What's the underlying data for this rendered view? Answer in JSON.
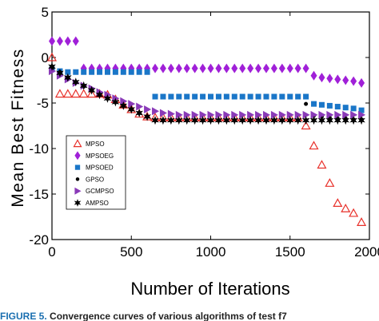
{
  "chart_data": {
    "type": "scatter",
    "title": "",
    "xlabel": "Number of Iterations",
    "ylabel": "Mean Best Fitness",
    "xlim": [
      0,
      2000
    ],
    "ylim": [
      -20,
      5
    ],
    "xticks": [
      0,
      500,
      1000,
      1500,
      2000
    ],
    "yticks": [
      5,
      0,
      -5,
      -10,
      -15,
      -20
    ],
    "grid": false,
    "legend_position": "lower-left",
    "series": [
      {
        "name": "MPSO",
        "marker": "triangle-up-open",
        "color": "#e8302a",
        "x": [
          0,
          50,
          100,
          150,
          200,
          250,
          300,
          350,
          400,
          450,
          500,
          550,
          600,
          650,
          700,
          750,
          800,
          850,
          900,
          950,
          1000,
          1050,
          1100,
          1150,
          1200,
          1250,
          1300,
          1350,
          1400,
          1450,
          1500,
          1550,
          1600,
          1650,
          1700,
          1750,
          1800,
          1850,
          1900,
          1950
        ],
        "y": [
          0,
          -4,
          -4,
          -4,
          -4,
          -4,
          -4,
          -4.1,
          -4.6,
          -5.2,
          -5.7,
          -6.2,
          -6.5,
          -6.6,
          -6.6,
          -6.6,
          -6.6,
          -6.6,
          -6.6,
          -6.6,
          -6.6,
          -6.6,
          -6.6,
          -6.6,
          -6.6,
          -6.6,
          -6.6,
          -6.6,
          -6.6,
          -6.6,
          -6.6,
          -6.6,
          -7.5,
          -9.7,
          -11.8,
          -13.8,
          -16,
          -16.6,
          -17.1,
          -18.1
        ]
      },
      {
        "name": "MPSOEG",
        "marker": "diamond",
        "color": "#a020d8",
        "x": [
          0,
          50,
          100,
          150,
          200,
          250,
          300,
          350,
          400,
          450,
          500,
          550,
          600,
          650,
          700,
          750,
          800,
          850,
          900,
          950,
          1000,
          1050,
          1100,
          1150,
          1200,
          1250,
          1300,
          1350,
          1400,
          1450,
          1500,
          1550,
          1600,
          1650,
          1700,
          1750,
          1800,
          1850,
          1900,
          1950
        ],
        "y": [
          1.8,
          1.8,
          1.8,
          1.8,
          -1.2,
          -1.2,
          -1.2,
          -1.2,
          -1.2,
          -1.2,
          -1.2,
          -1.2,
          -1.2,
          -1.2,
          -1.2,
          -1.2,
          -1.2,
          -1.2,
          -1.2,
          -1.2,
          -1.2,
          -1.2,
          -1.2,
          -1.2,
          -1.2,
          -1.2,
          -1.2,
          -1.2,
          -1.2,
          -1.2,
          -1.2,
          -1.2,
          -1.2,
          -2,
          -2.2,
          -2.3,
          -2.4,
          -2.5,
          -2.6,
          -2.8
        ]
      },
      {
        "name": "MPSOED",
        "marker": "square",
        "color": "#1a76c8",
        "x": [
          0,
          50,
          100,
          150,
          200,
          250,
          300,
          350,
          400,
          450,
          500,
          550,
          600,
          650,
          700,
          750,
          800,
          850,
          900,
          950,
          1000,
          1050,
          1100,
          1150,
          1200,
          1250,
          1300,
          1350,
          1400,
          1450,
          1500,
          1550,
          1600,
          1650,
          1700,
          1750,
          1800,
          1850,
          1900,
          1950
        ],
        "y": [
          -1.3,
          -1.5,
          -1.6,
          -1.6,
          -1.6,
          -1.6,
          -1.6,
          -1.6,
          -1.6,
          -1.6,
          -1.6,
          -1.6,
          -1.6,
          -4.3,
          -4.3,
          -4.3,
          -4.3,
          -4.3,
          -4.3,
          -4.3,
          -4.3,
          -4.3,
          -4.3,
          -4.3,
          -4.3,
          -4.3,
          -4.3,
          -4.3,
          -4.3,
          -4.3,
          -4.3,
          -4.3,
          -4.3,
          -5.1,
          -5.2,
          -5.3,
          -5.4,
          -5.5,
          -5.6,
          -5.8
        ]
      },
      {
        "name": "GPSO",
        "marker": "dot",
        "color": "#000000",
        "x": [
          0,
          50,
          100,
          150,
          200,
          250,
          300,
          350,
          400,
          450,
          500,
          550,
          600,
          650,
          700,
          750,
          800,
          850,
          900,
          950,
          1000,
          1050,
          1100,
          1150,
          1200,
          1250,
          1300,
          1350,
          1400,
          1450,
          1500,
          1550,
          1600,
          1650,
          1700,
          1750,
          1800,
          1850,
          1900,
          1950
        ],
        "y": [
          -1.3,
          -1.6,
          -2.2,
          -2.7,
          -3.2,
          -3.6,
          -4.1,
          -4.5,
          -4.9,
          -5.3,
          -5.7,
          -6.1,
          -6.5,
          -6.9,
          -6.9,
          -6.9,
          -6.9,
          -6.9,
          -6.9,
          -6.9,
          -6.9,
          -6.9,
          -6.9,
          -6.9,
          -6.9,
          -6.9,
          -6.9,
          -6.9,
          -6.9,
          -6.9,
          -6.9,
          -6.9,
          -5.1,
          -6.4,
          -6.5,
          -6.6,
          -6.7,
          -6.7,
          -6.8,
          -6.8
        ]
      },
      {
        "name": "GCMPSO",
        "marker": "triangle-right",
        "color": "#8a3ab8",
        "x": [
          0,
          50,
          100,
          150,
          200,
          250,
          300,
          350,
          400,
          450,
          500,
          550,
          600,
          650,
          700,
          750,
          800,
          850,
          900,
          950,
          1000,
          1050,
          1100,
          1150,
          1200,
          1250,
          1300,
          1350,
          1400,
          1450,
          1500,
          1550,
          1600,
          1650,
          1700,
          1750,
          1800,
          1850,
          1900,
          1950
        ],
        "y": [
          -1.5,
          -2,
          -2.4,
          -2.8,
          -3.1,
          -3.4,
          -3.8,
          -4.1,
          -4.5,
          -4.8,
          -5.1,
          -5.4,
          -5.7,
          -5.9,
          -6.1,
          -6.2,
          -6.3,
          -6.3,
          -6.3,
          -6.3,
          -6.3,
          -6.3,
          -6.3,
          -6.3,
          -6.3,
          -6.3,
          -6.3,
          -6.3,
          -6.3,
          -6.3,
          -6.3,
          -6.3,
          -6.3,
          -6.3,
          -6.3,
          -6.3,
          -6.3,
          -6.3,
          -6.3,
          -6.3
        ]
      },
      {
        "name": "AMPSO",
        "marker": "star",
        "color": "#000000",
        "x": [
          0,
          50,
          100,
          150,
          200,
          250,
          300,
          350,
          400,
          450,
          500,
          550,
          600,
          650,
          700,
          750,
          800,
          850,
          900,
          950,
          1000,
          1050,
          1100,
          1150,
          1200,
          1250,
          1300,
          1350,
          1400,
          1450,
          1500,
          1550,
          1600,
          1650,
          1700,
          1750,
          1800,
          1850,
          1900,
          1950
        ],
        "y": [
          -1,
          -1.7,
          -2.2,
          -2.7,
          -3.1,
          -3.6,
          -4.1,
          -4.5,
          -4.9,
          -5.3,
          -5.7,
          -6.1,
          -6.5,
          -6.9,
          -6.9,
          -6.9,
          -6.9,
          -6.9,
          -6.9,
          -6.9,
          -6.9,
          -6.9,
          -6.9,
          -6.9,
          -6.9,
          -6.9,
          -6.9,
          -6.9,
          -6.9,
          -6.9,
          -6.9,
          -6.9,
          -6.9,
          -6.9,
          -6.9,
          -6.9,
          -6.9,
          -6.9,
          -6.9,
          -6.9
        ]
      }
    ]
  },
  "caption": {
    "figure_label": "FIGURE 5.",
    "text": "Convergence curves of various algorithms of test f7"
  }
}
